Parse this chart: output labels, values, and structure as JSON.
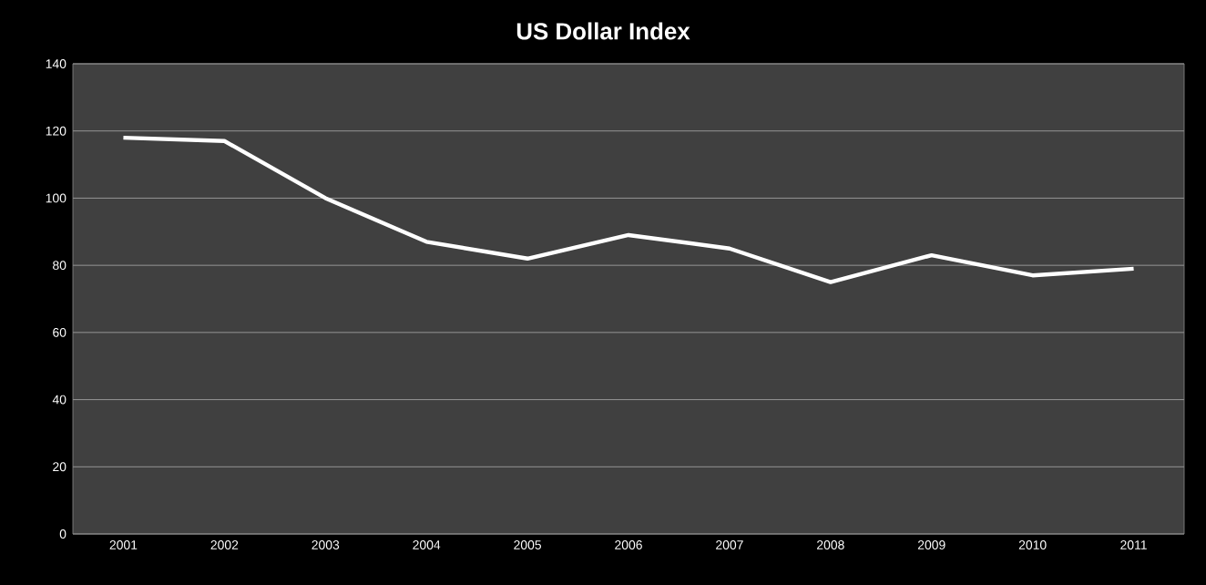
{
  "chart_data": {
    "type": "line",
    "title": "US Dollar Index",
    "categories": [
      "2001",
      "2002",
      "2003",
      "2004",
      "2005",
      "2006",
      "2007",
      "2008",
      "2009",
      "2010",
      "2011"
    ],
    "values": [
      118,
      117,
      100,
      87,
      82,
      89,
      85,
      75,
      83,
      77,
      79
    ],
    "color": "#ffffff",
    "ylim": [
      0,
      140
    ],
    "yticks": [
      0,
      20,
      40,
      60,
      80,
      100,
      120,
      140
    ],
    "grid": "y"
  }
}
